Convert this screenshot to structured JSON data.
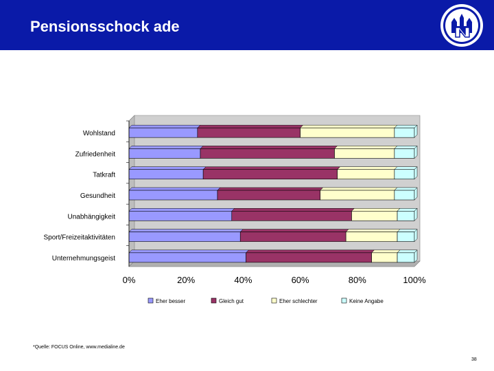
{
  "header": {
    "title": "Pensionsschock ade"
  },
  "colors": {
    "header_bg": "#0a1aa8",
    "plot_bg": "#d0d0d0"
  },
  "chart_data": {
    "type": "bar",
    "orientation": "horizontal",
    "stacked": true,
    "percent_stacked": true,
    "categories": [
      "Wohlstand",
      "Zufriedenheit",
      "Tatkraft",
      "Gesundheit",
      "Unabhängigkeit",
      "Sport/Freizeitaktivitäten",
      "Unternehmungsgeist"
    ],
    "series": [
      {
        "name": "Eher besser",
        "color": "#9999ff",
        "values": [
          24,
          25,
          26,
          31,
          36,
          39,
          41
        ]
      },
      {
        "name": "Gleich gut",
        "color": "#993366",
        "values": [
          36,
          47,
          47,
          36,
          42,
          37,
          44
        ]
      },
      {
        "name": "Eher schlechter",
        "color": "#ffffcc",
        "values": [
          33,
          21,
          20,
          26,
          16,
          18,
          9
        ]
      },
      {
        "name": "Keine Angabe",
        "color": "#ccffff",
        "values": [
          7,
          7,
          7,
          7,
          6,
          6,
          6
        ]
      }
    ],
    "xlim": [
      0,
      100
    ],
    "xticks": [
      "0%",
      "20%",
      "40%",
      "60%",
      "80%",
      "100%"
    ],
    "legend_position": "bottom",
    "grid": false
  },
  "footnote": "*Quelle: FOCUS Online, www.medialine.de",
  "page_number": "38"
}
